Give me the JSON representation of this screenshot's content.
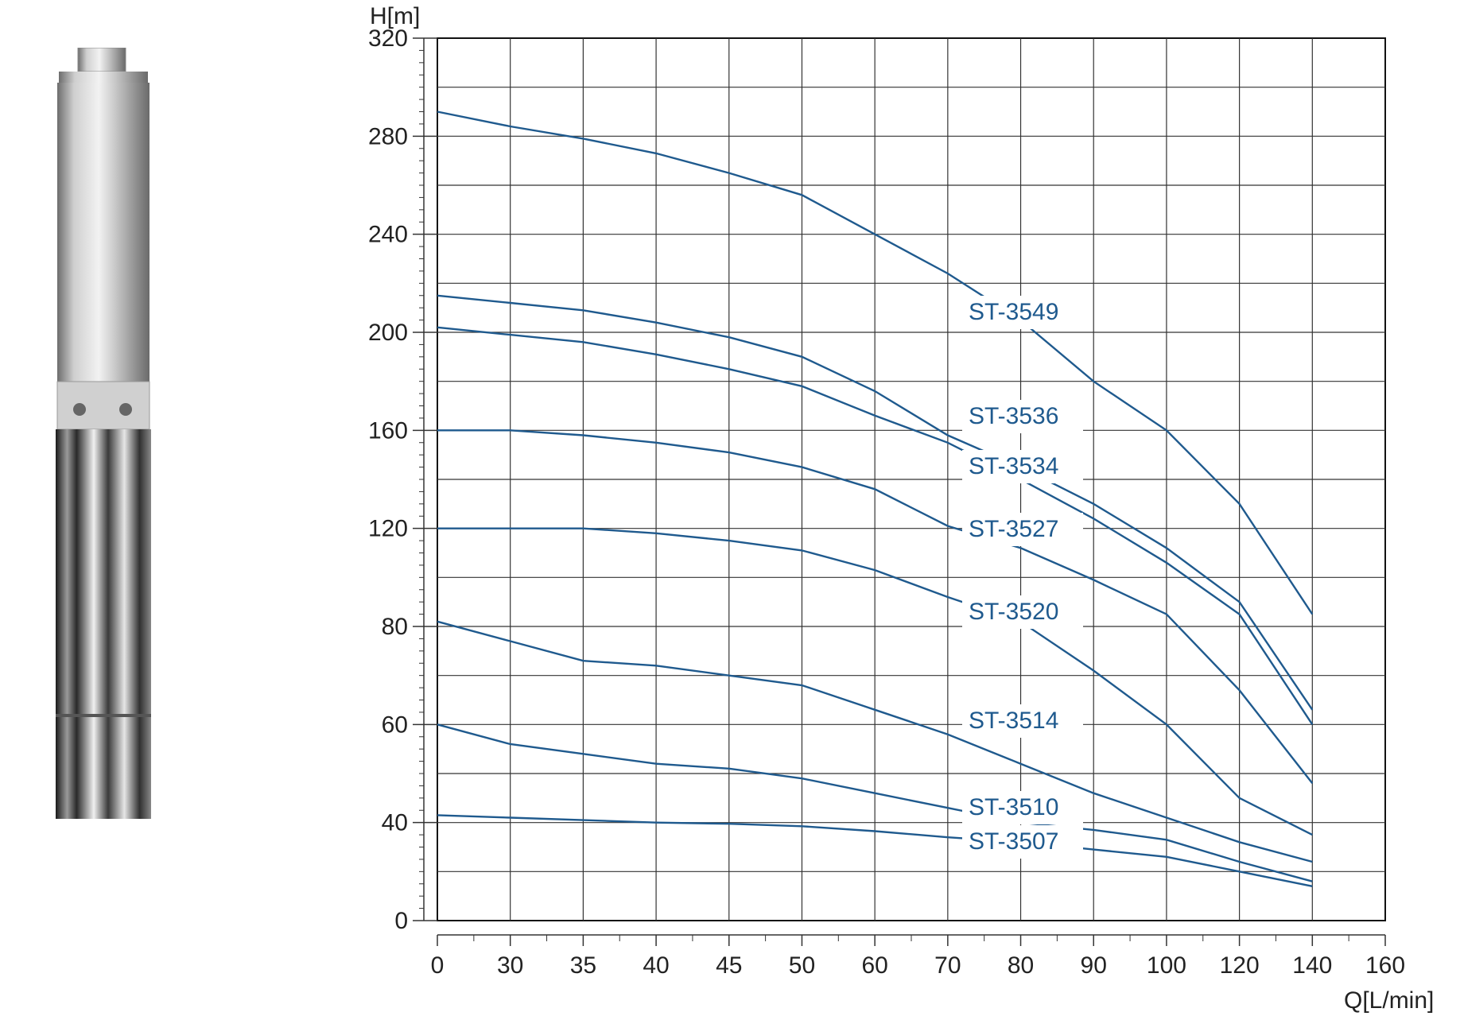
{
  "chart_data": {
    "type": "line",
    "title": "",
    "ylabel": "H[m]",
    "xlabel": "Q[L/min]",
    "y_ticks": [
      "0",
      "40",
      "60",
      "80",
      "120",
      "160",
      "200",
      "240",
      "280",
      "320"
    ],
    "x_ticks": [
      "0",
      "30",
      "35",
      "40",
      "45",
      "50",
      "60",
      "70",
      "80",
      "90",
      "100",
      "120",
      "140",
      "160"
    ],
    "grid": true,
    "line_color": "#1f5a8e",
    "series": [
      {
        "name": "ST-3549",
        "x": [
          0,
          30,
          35,
          40,
          45,
          50,
          60,
          70,
          80,
          90,
          100,
          120,
          140
        ],
        "y": [
          290,
          284,
          279,
          273,
          265,
          256,
          240,
          224,
          205,
          180,
          160,
          130,
          85
        ]
      },
      {
        "name": "ST-3536",
        "x": [
          0,
          30,
          35,
          40,
          45,
          50,
          60,
          70,
          80,
          90,
          100,
          120,
          140
        ],
        "y": [
          215,
          212,
          209,
          204,
          198,
          190,
          176,
          158,
          145,
          130,
          112,
          90,
          63
        ]
      },
      {
        "name": "ST-3534",
        "x": [
          0,
          30,
          35,
          40,
          45,
          50,
          60,
          70,
          80,
          90,
          100,
          120,
          140
        ],
        "y": [
          202,
          199,
          196,
          191,
          185,
          178,
          166,
          155,
          140,
          124,
          106,
          85,
          60
        ]
      },
      {
        "name": "ST-3527",
        "x": [
          0,
          30,
          35,
          40,
          45,
          50,
          60,
          70,
          80,
          90,
          100,
          120,
          140
        ],
        "y": [
          160,
          160,
          158,
          155,
          151,
          145,
          136,
          121,
          112,
          99,
          85,
          67,
          48
        ]
      },
      {
        "name": "ST-3520",
        "x": [
          0,
          30,
          35,
          40,
          45,
          50,
          60,
          70,
          80,
          90,
          100,
          120,
          140
        ],
        "y": [
          120,
          120,
          120,
          118,
          115,
          111,
          103,
          92,
          82,
          71,
          60,
          45,
          35
        ]
      },
      {
        "name": "ST-3514",
        "x": [
          0,
          30,
          35,
          40,
          45,
          50,
          60,
          70,
          80,
          90,
          100,
          120,
          140
        ],
        "y": [
          82,
          77,
          73,
          72,
          70,
          68,
          63,
          58,
          52,
          46,
          41,
          32,
          24
        ]
      },
      {
        "name": "ST-3510",
        "x": [
          0,
          30,
          35,
          40,
          45,
          50,
          60,
          70,
          80,
          90,
          100,
          120,
          140
        ],
        "y": [
          60,
          56,
          54,
          52,
          51,
          49,
          46,
          43,
          40,
          37,
          33,
          24,
          16
        ]
      },
      {
        "name": "ST-3507",
        "x": [
          0,
          30,
          35,
          40,
          45,
          50,
          60,
          70,
          80,
          90,
          100,
          120,
          140
        ],
        "y": [
          41.5,
          41,
          40.5,
          40,
          39.5,
          38.5,
          36.5,
          34,
          32,
          29,
          26,
          20,
          14
        ]
      }
    ]
  }
}
